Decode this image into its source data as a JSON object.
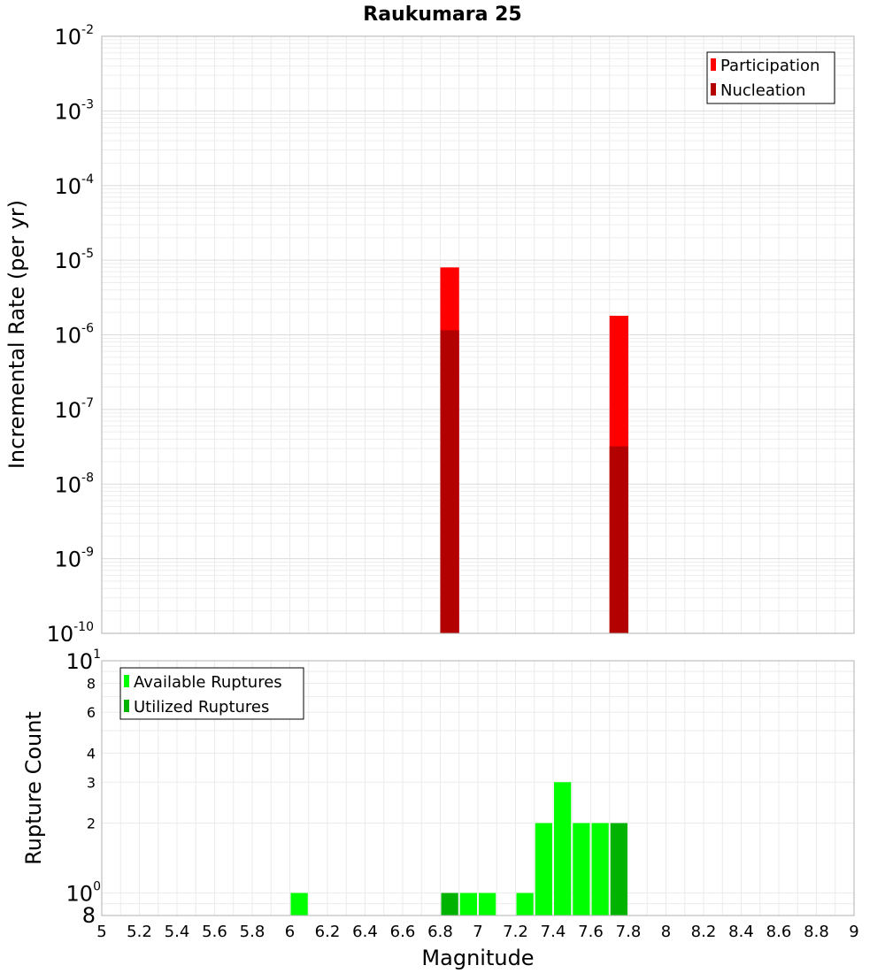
{
  "chart_data": [
    {
      "type": "bar",
      "title": "Raukumara 25",
      "xlabel": "",
      "ylabel": "Incremental Rate (per yr)",
      "xlim": [
        5,
        9
      ],
      "ylim": [
        1e-10,
        0.01
      ],
      "yscale": "log",
      "bin_width": 0.1,
      "grid": true,
      "legend_position": "top-right",
      "y_tick_exponents": [
        -10,
        -9,
        -8,
        -7,
        -6,
        -5,
        -4,
        -3,
        -2
      ],
      "series": [
        {
          "name": "Participation",
          "color": "#ff0000",
          "points": [
            {
              "x": 6.85,
              "y": 8e-06
            },
            {
              "x": 7.75,
              "y": 1.8e-06
            }
          ]
        },
        {
          "name": "Nucleation",
          "color": "#b30000",
          "points": [
            {
              "x": 6.85,
              "y": 1.15e-06
            },
            {
              "x": 7.75,
              "y": 3.2e-08
            }
          ]
        }
      ]
    },
    {
      "type": "bar",
      "title": "",
      "xlabel": "Magnitude",
      "ylabel": "Rupture Count",
      "xlim": [
        5,
        9
      ],
      "ylim": [
        0.8,
        10
      ],
      "yscale": "log",
      "bin_width": 0.1,
      "grid": true,
      "legend_position": "top-left",
      "x_ticks": [
        "5",
        "5.2",
        "5.4",
        "5.6",
        "5.8",
        "6",
        "6.2",
        "6.4",
        "6.6",
        "6.8",
        "7",
        "7.2",
        "7.4",
        "7.6",
        "7.8",
        "8",
        "8.2",
        "8.4",
        "8.6",
        "8.8",
        "9"
      ],
      "y_minor_ticks": [
        {
          "value": 8,
          "label": "8"
        },
        {
          "value": 6,
          "label": "6"
        },
        {
          "value": 4,
          "label": "4"
        },
        {
          "value": 3,
          "label": "3"
        },
        {
          "value": 2,
          "label": "2"
        }
      ],
      "y_bottom_label": "8",
      "y_power_ticks": [
        {
          "value": 1,
          "base": "10",
          "exp": "0"
        },
        {
          "value": 10,
          "base": "10",
          "exp": "1"
        }
      ],
      "series": [
        {
          "name": "Available Ruptures",
          "color": "#00ff00",
          "points": [
            {
              "x": 6.05,
              "y": 1
            },
            {
              "x": 6.95,
              "y": 1
            },
            {
              "x": 7.05,
              "y": 1
            },
            {
              "x": 7.25,
              "y": 1
            },
            {
              "x": 7.35,
              "y": 2
            },
            {
              "x": 7.45,
              "y": 3
            },
            {
              "x": 7.55,
              "y": 2
            },
            {
              "x": 7.65,
              "y": 2
            }
          ]
        },
        {
          "name": "Utilized Ruptures",
          "color": "#00b300",
          "points": [
            {
              "x": 6.85,
              "y": 1
            },
            {
              "x": 7.75,
              "y": 2
            }
          ]
        }
      ]
    }
  ]
}
